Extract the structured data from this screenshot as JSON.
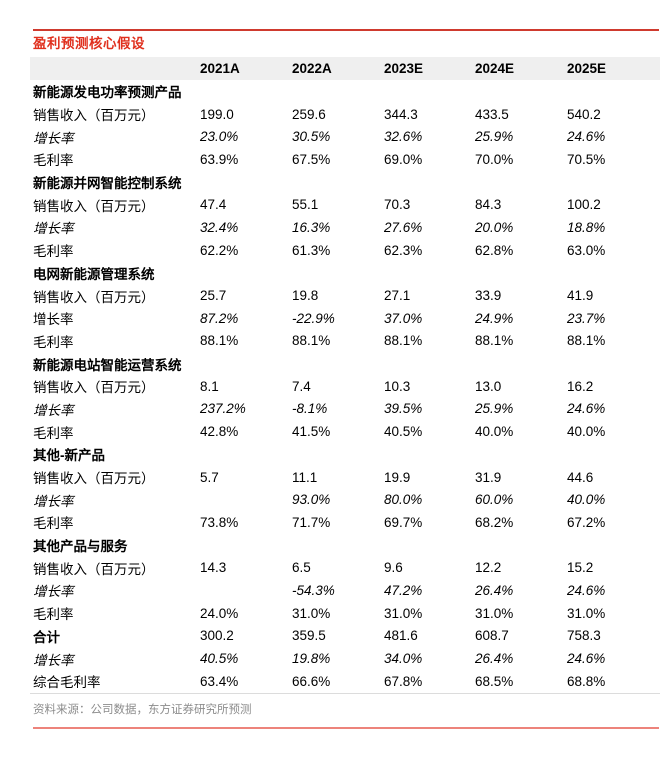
{
  "page": {
    "title": "盈利预测核心假设",
    "source": "资料来源：公司数据，东方证券研究所预测"
  },
  "colors": {
    "title_red": "#E0301E",
    "top_rule": "#CF3A2E",
    "bottom_rule": "#ED837B",
    "header_bg": "#EFEFEF",
    "table_bottom_border": "#DCDCDC",
    "source_gray": "#8C8C8C",
    "body_text": "#000000"
  },
  "table": {
    "columns": [
      "2021A",
      "2022A",
      "2023E",
      "2024E",
      "2025E"
    ],
    "rows": [
      {
        "type": "section",
        "label": "新能源发电功率预测产品"
      },
      {
        "type": "data",
        "label": "销售收入（百万元）",
        "values": [
          "199.0",
          "259.6",
          "344.3",
          "433.5",
          "540.2"
        ]
      },
      {
        "type": "data",
        "label": "增长率",
        "label_style": "italic",
        "value_style": "italic",
        "values": [
          "23.0%",
          "30.5%",
          "32.6%",
          "25.9%",
          "24.6%"
        ]
      },
      {
        "type": "data",
        "label": "毛利率",
        "values": [
          "63.9%",
          "67.5%",
          "69.0%",
          "70.0%",
          "70.5%"
        ]
      },
      {
        "type": "section",
        "label": "新能源并网智能控制系统"
      },
      {
        "type": "data",
        "label": "销售收入（百万元）",
        "values": [
          "47.4",
          "55.1",
          "70.3",
          "84.3",
          "100.2"
        ]
      },
      {
        "type": "data",
        "label": "增长率",
        "label_style": "italic",
        "value_style": "italic",
        "values": [
          "32.4%",
          "16.3%",
          "27.6%",
          "20.0%",
          "18.8%"
        ]
      },
      {
        "type": "data",
        "label": "毛利率",
        "values": [
          "62.2%",
          "61.3%",
          "62.3%",
          "62.8%",
          "63.0%"
        ]
      },
      {
        "type": "section",
        "label": "电网新能源管理系统"
      },
      {
        "type": "data",
        "label": "销售收入（百万元）",
        "values": [
          "25.7",
          "19.8",
          "27.1",
          "33.9",
          "41.9"
        ]
      },
      {
        "type": "data",
        "label": "增长率",
        "label_style": "normal",
        "value_style": "italic",
        "values": [
          "87.2%",
          "-22.9%",
          "37.0%",
          "24.9%",
          "23.7%"
        ]
      },
      {
        "type": "data",
        "label": "毛利率",
        "values": [
          "88.1%",
          "88.1%",
          "88.1%",
          "88.1%",
          "88.1%"
        ]
      },
      {
        "type": "section",
        "label": "新能源电站智能运营系统"
      },
      {
        "type": "data",
        "label": "销售收入（百万元）",
        "values": [
          "8.1",
          "7.4",
          "10.3",
          "13.0",
          "16.2"
        ]
      },
      {
        "type": "data",
        "label": "增长率",
        "label_style": "italic",
        "value_style": "italic",
        "values": [
          "237.2%",
          "-8.1%",
          "39.5%",
          "25.9%",
          "24.6%"
        ]
      },
      {
        "type": "data",
        "label": "毛利率",
        "values": [
          "42.8%",
          "41.5%",
          "40.5%",
          "40.0%",
          "40.0%"
        ]
      },
      {
        "type": "section",
        "label": "其他-新产品"
      },
      {
        "type": "data",
        "label": "销售收入（百万元）",
        "values": [
          "5.7",
          "11.1",
          "19.9",
          "31.9",
          "44.6"
        ]
      },
      {
        "type": "data",
        "label": "增长率",
        "label_style": "italic",
        "value_style": "italic",
        "values": [
          "",
          "93.0%",
          "80.0%",
          "60.0%",
          "40.0%"
        ]
      },
      {
        "type": "data",
        "label": "毛利率",
        "values": [
          "73.8%",
          "71.7%",
          "69.7%",
          "68.2%",
          "67.2%"
        ]
      },
      {
        "type": "section",
        "label": "其他产品与服务"
      },
      {
        "type": "data",
        "label": "销售收入（百万元）",
        "values": [
          "14.3",
          "6.5",
          "9.6",
          "12.2",
          "15.2"
        ]
      },
      {
        "type": "data",
        "label": "增长率",
        "label_style": "italic",
        "value_style": "italic",
        "values": [
          "",
          "-54.3%",
          "47.2%",
          "26.4%",
          "24.6%"
        ]
      },
      {
        "type": "data",
        "label": "毛利率",
        "values": [
          "24.0%",
          "31.0%",
          "31.0%",
          "31.0%",
          "31.0%"
        ]
      },
      {
        "type": "data",
        "label": "合计",
        "label_style": "bold",
        "values": [
          "300.2",
          "359.5",
          "481.6",
          "608.7",
          "758.3"
        ]
      },
      {
        "type": "data",
        "label": "增长率",
        "label_style": "italic",
        "value_style": "italic",
        "values": [
          "40.5%",
          "19.8%",
          "34.0%",
          "26.4%",
          "24.6%"
        ]
      },
      {
        "type": "data",
        "label": "综合毛利率",
        "values": [
          "63.4%",
          "66.6%",
          "67.8%",
          "68.5%",
          "68.8%"
        ]
      }
    ]
  }
}
